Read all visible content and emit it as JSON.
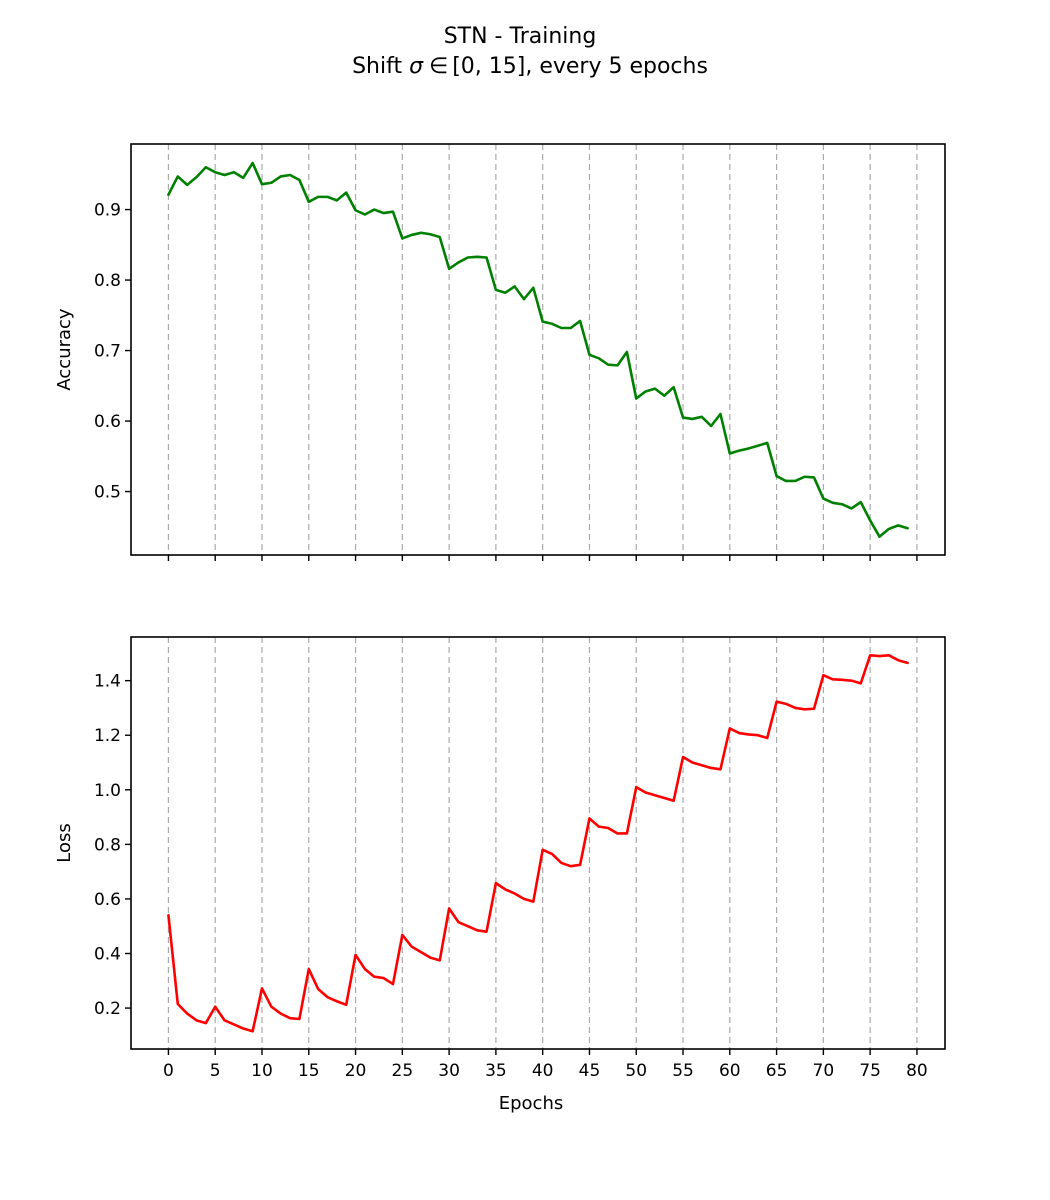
{
  "figure": {
    "title_line1": "STN - Training",
    "title_line2_prefix": "Shift ",
    "title_line2_sigma": "σ",
    "title_line2_in": "∈",
    "title_line2_range": "[0, 15]",
    "title_line2_suffix": ", every 5 epochs"
  },
  "chart_data": [
    {
      "type": "line",
      "ylabel": "Accuracy",
      "xlabel": "",
      "xlim": [
        -4,
        83
      ],
      "ylim": [
        0.41,
        0.993
      ],
      "xticks": [
        0,
        5,
        10,
        15,
        20,
        25,
        30,
        35,
        40,
        45,
        50,
        55,
        60,
        65,
        70,
        75,
        80
      ],
      "show_xtick_labels": false,
      "yticks": [
        0.5,
        0.6,
        0.7,
        0.8,
        0.9
      ],
      "ytick_labels": [
        "0.5",
        "0.6",
        "0.7",
        "0.8",
        "0.9"
      ],
      "vlines_every_5": true,
      "grid": "vertical dashed",
      "series": [
        {
          "color": "#008000",
          "x": [
            0,
            1,
            2,
            3,
            4,
            5,
            6,
            7,
            8,
            9,
            10,
            11,
            12,
            13,
            14,
            15,
            16,
            17,
            18,
            19,
            20,
            21,
            22,
            23,
            24,
            25,
            26,
            27,
            28,
            29,
            30,
            31,
            32,
            33,
            34,
            35,
            36,
            37,
            38,
            39,
            40,
            41,
            42,
            43,
            44,
            45,
            46,
            47,
            48,
            49,
            50,
            51,
            52,
            53,
            54,
            55,
            56,
            57,
            58,
            59,
            60,
            61,
            62,
            63,
            64,
            65,
            66,
            67,
            68,
            69,
            70,
            71,
            72,
            73,
            74,
            75,
            76,
            77,
            78,
            79
          ],
          "y": [
            0.921,
            0.947,
            0.935,
            0.946,
            0.96,
            0.953,
            0.949,
            0.953,
            0.945,
            0.966,
            0.936,
            0.938,
            0.947,
            0.949,
            0.942,
            0.911,
            0.918,
            0.918,
            0.913,
            0.924,
            0.899,
            0.893,
            0.9,
            0.895,
            0.897,
            0.859,
            0.864,
            0.867,
            0.865,
            0.861,
            0.816,
            0.825,
            0.832,
            0.833,
            0.832,
            0.786,
            0.782,
            0.791,
            0.773,
            0.789,
            0.741,
            0.738,
            0.732,
            0.732,
            0.742,
            0.694,
            0.689,
            0.68,
            0.679,
            0.698,
            0.632,
            0.642,
            0.646,
            0.636,
            0.648,
            0.605,
            0.603,
            0.606,
            0.593,
            0.61,
            0.554,
            0.558,
            0.561,
            0.565,
            0.569,
            0.522,
            0.515,
            0.515,
            0.521,
            0.52,
            0.49,
            0.484,
            0.482,
            0.476,
            0.485,
            0.459,
            0.436,
            0.447,
            0.452,
            0.448
          ]
        }
      ]
    },
    {
      "type": "line",
      "ylabel": "Loss",
      "xlabel": "Epochs",
      "xlim": [
        -4,
        83
      ],
      "ylim": [
        0.05,
        1.56
      ],
      "xticks": [
        0,
        5,
        10,
        15,
        20,
        25,
        30,
        35,
        40,
        45,
        50,
        55,
        60,
        65,
        70,
        75,
        80
      ],
      "xtick_labels": [
        "0",
        "5",
        "10",
        "15",
        "20",
        "25",
        "30",
        "35",
        "40",
        "45",
        "50",
        "55",
        "60",
        "65",
        "70",
        "75",
        "80"
      ],
      "show_xtick_labels": true,
      "yticks": [
        0.2,
        0.4,
        0.6,
        0.8,
        1.0,
        1.2,
        1.4
      ],
      "ytick_labels": [
        "0.2",
        "0.4",
        "0.6",
        "0.8",
        "1.0",
        "1.2",
        "1.4"
      ],
      "vlines_every_5": true,
      "grid": "vertical dashed",
      "series": [
        {
          "color": "#ff0000",
          "x": [
            0,
            1,
            2,
            3,
            4,
            5,
            6,
            7,
            8,
            9,
            10,
            11,
            12,
            13,
            14,
            15,
            16,
            17,
            18,
            19,
            20,
            21,
            22,
            23,
            24,
            25,
            26,
            27,
            28,
            29,
            30,
            31,
            32,
            33,
            34,
            35,
            36,
            37,
            38,
            39,
            40,
            41,
            42,
            43,
            44,
            45,
            46,
            47,
            48,
            49,
            50,
            51,
            52,
            53,
            54,
            55,
            56,
            57,
            58,
            59,
            60,
            61,
            62,
            63,
            64,
            65,
            66,
            67,
            68,
            69,
            70,
            71,
            72,
            73,
            74,
            75,
            76,
            77,
            78,
            79
          ],
          "y": [
            0.54,
            0.215,
            0.18,
            0.155,
            0.145,
            0.205,
            0.155,
            0.14,
            0.125,
            0.115,
            0.272,
            0.205,
            0.18,
            0.163,
            0.16,
            0.343,
            0.27,
            0.24,
            0.225,
            0.212,
            0.395,
            0.343,
            0.315,
            0.31,
            0.288,
            0.468,
            0.425,
            0.405,
            0.385,
            0.375,
            0.565,
            0.515,
            0.5,
            0.485,
            0.48,
            0.658,
            0.635,
            0.62,
            0.6,
            0.59,
            0.78,
            0.765,
            0.732,
            0.72,
            0.725,
            0.895,
            0.865,
            0.86,
            0.84,
            0.84,
            1.01,
            0.99,
            0.98,
            0.97,
            0.96,
            1.12,
            1.1,
            1.09,
            1.08,
            1.075,
            1.225,
            1.208,
            1.203,
            1.2,
            1.19,
            1.323,
            1.315,
            1.3,
            1.295,
            1.297,
            1.42,
            1.405,
            1.403,
            1.4,
            1.39,
            1.493,
            1.49,
            1.493,
            1.475,
            1.465
          ]
        }
      ]
    }
  ]
}
